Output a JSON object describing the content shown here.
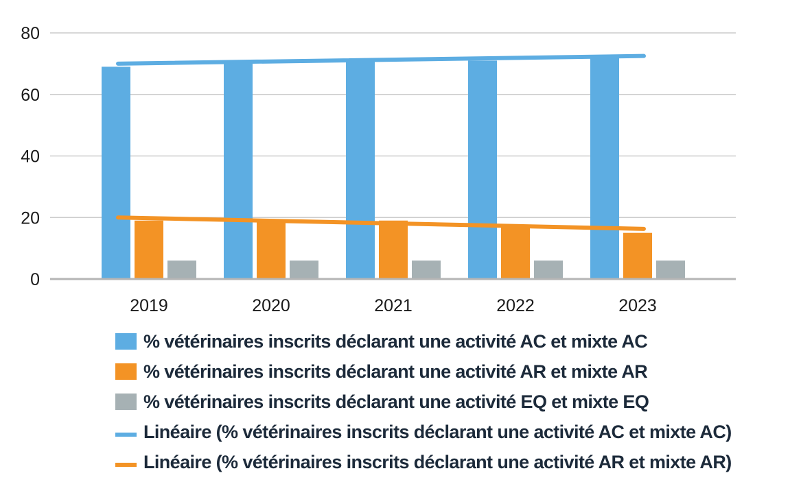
{
  "colors": {
    "ac": "#5dade2",
    "ar": "#f39325",
    "eq": "#a6b1b4",
    "grid": "#cccccc",
    "axis": "#b5b5b5"
  },
  "chart_data": {
    "type": "bar",
    "categories": [
      "2019",
      "2020",
      "2021",
      "2022",
      "2023"
    ],
    "ylim": [
      0,
      80
    ],
    "yticks": [
      0,
      20,
      40,
      60,
      80
    ],
    "grid": true,
    "legend_position": "bottom",
    "series": [
      {
        "name": "% vétérinaires inscrits déclarant une activité AC et mixte AC",
        "values": [
          69,
          71,
          71,
          71,
          72
        ],
        "color": "#5dade2"
      },
      {
        "name": "% vétérinaires inscrits déclarant une activité AR et mixte AR",
        "values": [
          19,
          19,
          19,
          17,
          15
        ],
        "color": "#f39325"
      },
      {
        "name": "% vétérinaires inscrits déclarant une activité EQ et mixte EQ",
        "values": [
          6,
          6,
          6,
          6,
          6
        ],
        "color": "#a6b1b4"
      }
    ],
    "trendlines": [
      {
        "name": "Linéaire (% vétérinaires inscrits déclarant une activité AC et mixte AC)",
        "start": 70,
        "end": 72.5,
        "color": "#5dade2"
      },
      {
        "name": "Linéaire (% vétérinaires inscrits déclarant une activité AR et mixte AR)",
        "start": 20,
        "end": 16.3,
        "color": "#f39325"
      }
    ]
  },
  "legend": [
    {
      "label": "% vétérinaires inscrits déclarant une activité AC et mixte AC",
      "kind": "box",
      "color": "#5dade2"
    },
    {
      "label": "% vétérinaires inscrits déclarant une activité AR et mixte AR",
      "kind": "box",
      "color": "#f39325"
    },
    {
      "label": "% vétérinaires inscrits déclarant une activité EQ et mixte EQ",
      "kind": "box",
      "color": "#a6b1b4"
    },
    {
      "label": "Linéaire (% vétérinaires inscrits déclarant une activité AC et mixte AC)",
      "kind": "line",
      "color": "#5dade2"
    },
    {
      "label": "Linéaire (% vétérinaires inscrits déclarant une activité AR et mixte AR)",
      "kind": "line",
      "color": "#f39325"
    }
  ]
}
